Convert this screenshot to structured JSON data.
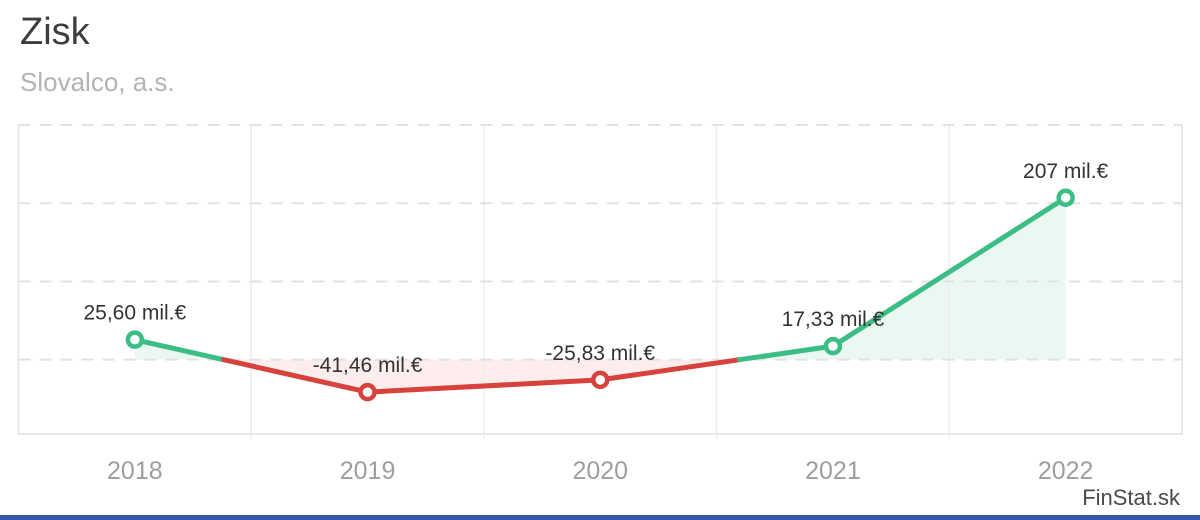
{
  "header": {
    "title": "Zisk",
    "subtitle": "Slovalco, a.s."
  },
  "footer": {
    "brand": "FinStat.sk"
  },
  "chart_data": {
    "type": "line",
    "title": "Zisk",
    "subtitle": "Slovalco, a.s.",
    "categories": [
      "2018",
      "2019",
      "2020",
      "2021",
      "2022"
    ],
    "series": [
      {
        "name": "Zisk",
        "values": [
          25.6,
          -41.46,
          -25.83,
          17.33,
          207
        ]
      }
    ],
    "point_labels": [
      "25,60 mil.€",
      "-41,46 mil.€",
      "-25,83 mil.€",
      "17,33 mil.€",
      "207 mil.€"
    ],
    "unit": "mil.€",
    "ylim": [
      -95,
      300
    ],
    "gridlines_y": [
      0,
      100,
      200,
      300
    ],
    "grid": true,
    "legend": "none",
    "colors": {
      "positive": "#3cbd85",
      "negative": "#d8423c",
      "positive_fill": "#ebf8f2",
      "negative_fill": "#fdeeed",
      "grid": "#e2e2e2",
      "grid_vertical": "#ededed",
      "axis_border": "#e8e8e8",
      "label_text": "#333333",
      "tick_text": "#9e9e9e",
      "title_text": "#3d3d3d",
      "subtitle_text": "#b3b3b3",
      "brand_text": "#4a4a4a",
      "accent_bar": "#3557ad"
    }
  }
}
